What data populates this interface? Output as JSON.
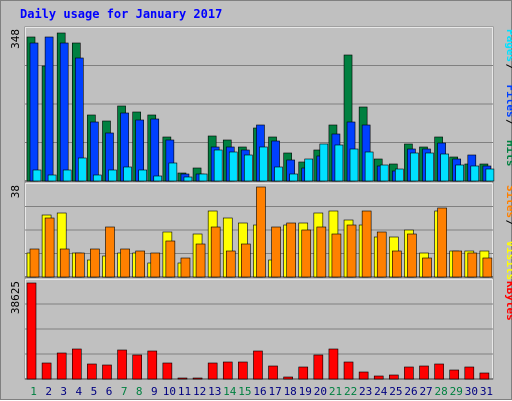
{
  "chart_data": {
    "type": "bar",
    "title": "Daily usage for January 2017",
    "colors": {
      "hits": "#008040",
      "files": "#0040ff",
      "pages": "#00e0ff",
      "visits": "#ffff00",
      "sites": "#ff8000",
      "kbytes": "#ff0000",
      "weekend_label": "#008040",
      "weekday_label": "#000080",
      "title": "#0000ff",
      "plot_bg": "#c0c0c0"
    },
    "days": [
      "1",
      "2",
      "3",
      "4",
      "5",
      "6",
      "7",
      "8",
      "9",
      "10",
      "11",
      "12",
      "13",
      "14",
      "15",
      "16",
      "17",
      "18",
      "19",
      "20",
      "21",
      "22",
      "23",
      "24",
      "25",
      "26",
      "27",
      "28",
      "29",
      "30",
      "31"
    ],
    "weekend_days": [
      "1",
      "7",
      "8",
      "14",
      "15",
      "21",
      "22",
      "28",
      "29"
    ],
    "panels": [
      {
        "id": "requests",
        "ymax_label": "348",
        "ymax": 348,
        "legend": [
          {
            "name": "Pages",
            "color": "#00e0ff"
          },
          {
            "name": "Files",
            "color": "#0040ff"
          },
          {
            "name": "Hits",
            "color": "#008040"
          }
        ],
        "series": [
          {
            "name": "Hits",
            "values": [
              333,
              267,
              344,
              321,
              153,
              140,
              173,
              160,
              154,
              101,
              18,
              29,
              104,
              94,
              78,
              122,
              101,
              66,
              43,
              73,
              129,
              292,
              172,
              51,
              40,
              85,
              79,
              103,
              56,
              40,
              40
            ]
          },
          {
            "name": "Files",
            "values": [
              320,
              333,
              320,
              286,
              136,
              111,
              158,
              141,
              143,
              96,
              16,
              17,
              79,
              78,
              72,
              131,
              93,
              48,
              29,
              59,
              110,
              137,
              129,
              35,
              23,
              74,
              74,
              88,
              52,
              60,
              34
            ]
          },
          {
            "name": "Pages",
            "values": [
              25,
              14,
              26,
              54,
              13,
              26,
              32,
              26,
              12,
              41,
              10,
              16,
              72,
              67,
              61,
              78,
              32,
              16,
              52,
              86,
              83,
              74,
              68,
              36,
              28,
              64,
              64,
              62,
              37,
              35,
              28
            ]
          }
        ]
      },
      {
        "id": "visitors",
        "ymax_label": "38",
        "ymax": 38,
        "legend": [
          {
            "name": "Sites",
            "color": "#ff8000"
          },
          {
            "name": "Visits",
            "color": "#ffff00"
          }
        ],
        "series": [
          {
            "name": "Visits",
            "values": [
              10,
              26,
              27,
              10,
              7,
              9,
              10,
              10,
              6,
              19,
              6,
              18,
              28,
              25,
              23,
              22,
              7,
              22,
              23,
              27,
              28,
              24,
              22,
              17,
              17,
              20,
              10,
              28,
              11,
              11,
              11
            ]
          },
          {
            "name": "Sites",
            "values": [
              12,
              25,
              12,
              10,
              12,
              21,
              12,
              11,
              10,
              15,
              8,
              14,
              21,
              11,
              14,
              38,
              21,
              23,
              20,
              21,
              18,
              22,
              28,
              19,
              11,
              18,
              8,
              29,
              11,
              10,
              8
            ]
          }
        ]
      },
      {
        "id": "bandwidth",
        "ymax_label": "38625",
        "ymax": 38625,
        "legend": [
          {
            "name": "KBytes",
            "color": "#ff0000"
          }
        ],
        "series": [
          {
            "name": "KBytes",
            "values": [
              38625,
              6500,
              10400,
              11900,
              6200,
              5500,
              11800,
              9800,
              11100,
              6500,
              300,
              300,
              6300,
              6800,
              6800,
              11100,
              5300,
              1000,
              4700,
              9500,
              12100,
              6800,
              2800,
              1100,
              1500,
              4800,
              5200,
              6200,
              3600,
              5000,
              2500
            ]
          }
        ]
      }
    ]
  }
}
